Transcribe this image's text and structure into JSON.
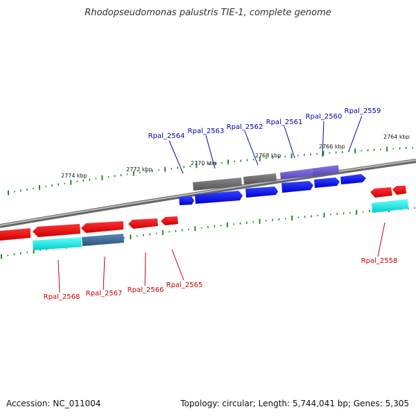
{
  "title": "Rhodopseudomonas palustris TIE-1, complete genome",
  "footer": {
    "accession": "Accession: NC_011004",
    "topology": "Topology: circular; Length: 5,744,041 bp; Genes: 5,305"
  },
  "colors": {
    "forward_gene": "#0000ee",
    "reverse_gene": "#ee0000",
    "pseudo_gene": "#666666",
    "purple_gene": "#7766cc",
    "cyan_cds": "#00eeee",
    "steel_cds": "#4477aa",
    "tick": "#228822",
    "backbone": "#888888"
  },
  "scale_labels": [
    "2774 kbp",
    "2772 kbp",
    "2770 kbp",
    "2768 kbp",
    "2766 kbp",
    "2764 kbp"
  ],
  "genes_top": [
    "Rpal_2564",
    "Rpal_2563",
    "Rpal_2562",
    "Rpal_2561",
    "Rpal_2560",
    "Rpal_2559"
  ],
  "genes_bottom": [
    "Rpal_2568",
    "Rpal_2567",
    "Rpal_2566",
    "Rpal_2565",
    "Rpal_2558"
  ]
}
